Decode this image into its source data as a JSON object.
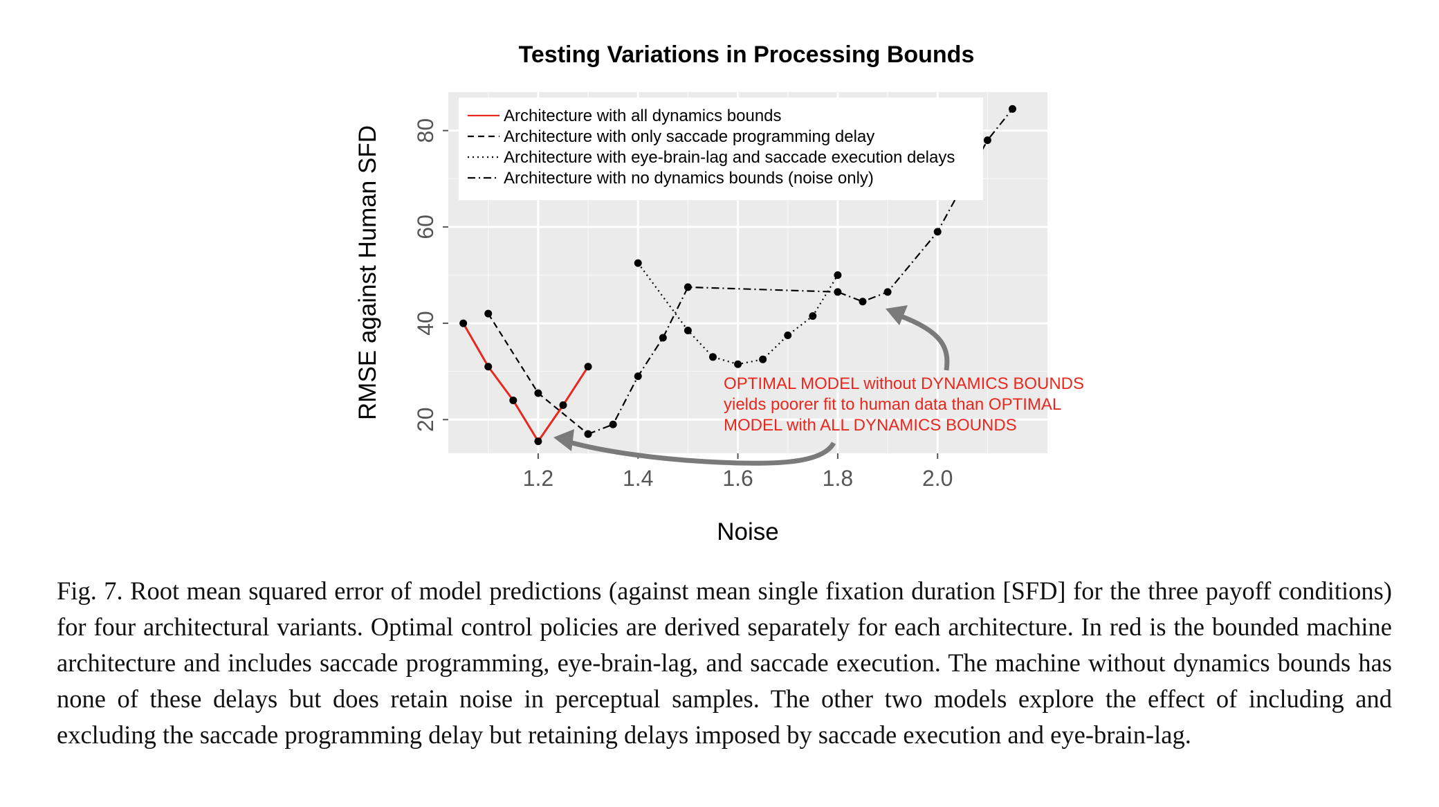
{
  "chart_data": {
    "type": "line",
    "title": "Testing Variations in Processing Bounds",
    "xlabel": "Noise",
    "ylabel": "RMSE against Human SFD",
    "xlim": [
      1.02,
      2.22
    ],
    "ylim": [
      13,
      88
    ],
    "xticks": [
      1.2,
      1.4,
      1.6,
      1.8,
      2.0
    ],
    "xtick_labels": [
      "1.2",
      "1.4",
      "1.6",
      "1.8",
      "2.0"
    ],
    "yticks": [
      20,
      40,
      60,
      80
    ],
    "ytick_labels": [
      "20",
      "40",
      "60",
      "80"
    ],
    "grid": true,
    "legend_position": "top-left",
    "series": [
      {
        "name": "Architecture with all dynamics bounds",
        "style": "solid",
        "color": "#e8281e",
        "x": [
          1.05,
          1.1,
          1.15,
          1.2,
          1.25,
          1.3
        ],
        "y": [
          40,
          31,
          24,
          15.5,
          23,
          31
        ]
      },
      {
        "name": "Architecture with only saccade programming delay",
        "style": "dashed",
        "color": "#000000",
        "x": [
          1.1,
          1.2,
          1.3
        ],
        "y": [
          42,
          25.5,
          17
        ]
      },
      {
        "name": "Architecture with eye-brain-lag and saccade execution delays",
        "style": "dotted",
        "color": "#000000",
        "x": [
          1.4,
          1.5,
          1.55,
          1.6,
          1.65,
          1.7,
          1.75,
          1.8
        ],
        "y": [
          52.5,
          38.5,
          33,
          31.5,
          32.5,
          37.5,
          41.5,
          50
        ]
      },
      {
        "name": "Architecture with no dynamics bounds (noise only)",
        "style": "dashdot",
        "color": "#000000",
        "x": [
          1.3,
          1.35,
          1.4,
          1.45,
          1.5,
          1.8,
          1.85,
          1.9,
          2.0,
          2.1,
          2.15
        ],
        "y": [
          17,
          19,
          29,
          37,
          47.5,
          46.5,
          44.5,
          46.5,
          59,
          78,
          84.5
        ]
      }
    ],
    "annotation": [
      "OPTIMAL MODEL without DYNAMICS BOUNDS",
      "yields poorer fit to human data than OPTIMAL",
      "MODEL with ALL DYNAMICS BOUNDS"
    ],
    "annotation_color": "#e8281e"
  },
  "caption": "Fig. 7.  Root mean squared error of model predictions (against mean single fixation duration [SFD] for the three payoff conditions) for four architectural variants. Optimal control policies are derived separately for each architecture. In red is the bounded machine architecture and includes saccade programming, eye-brain-lag, and saccade execution. The machine without dynamics bounds has none of these delays but does retain noise in perceptual samples. The other two models explore the effect of including and excluding the saccade programming delay but retaining delays imposed by saccade execution and eye-brain-lag."
}
